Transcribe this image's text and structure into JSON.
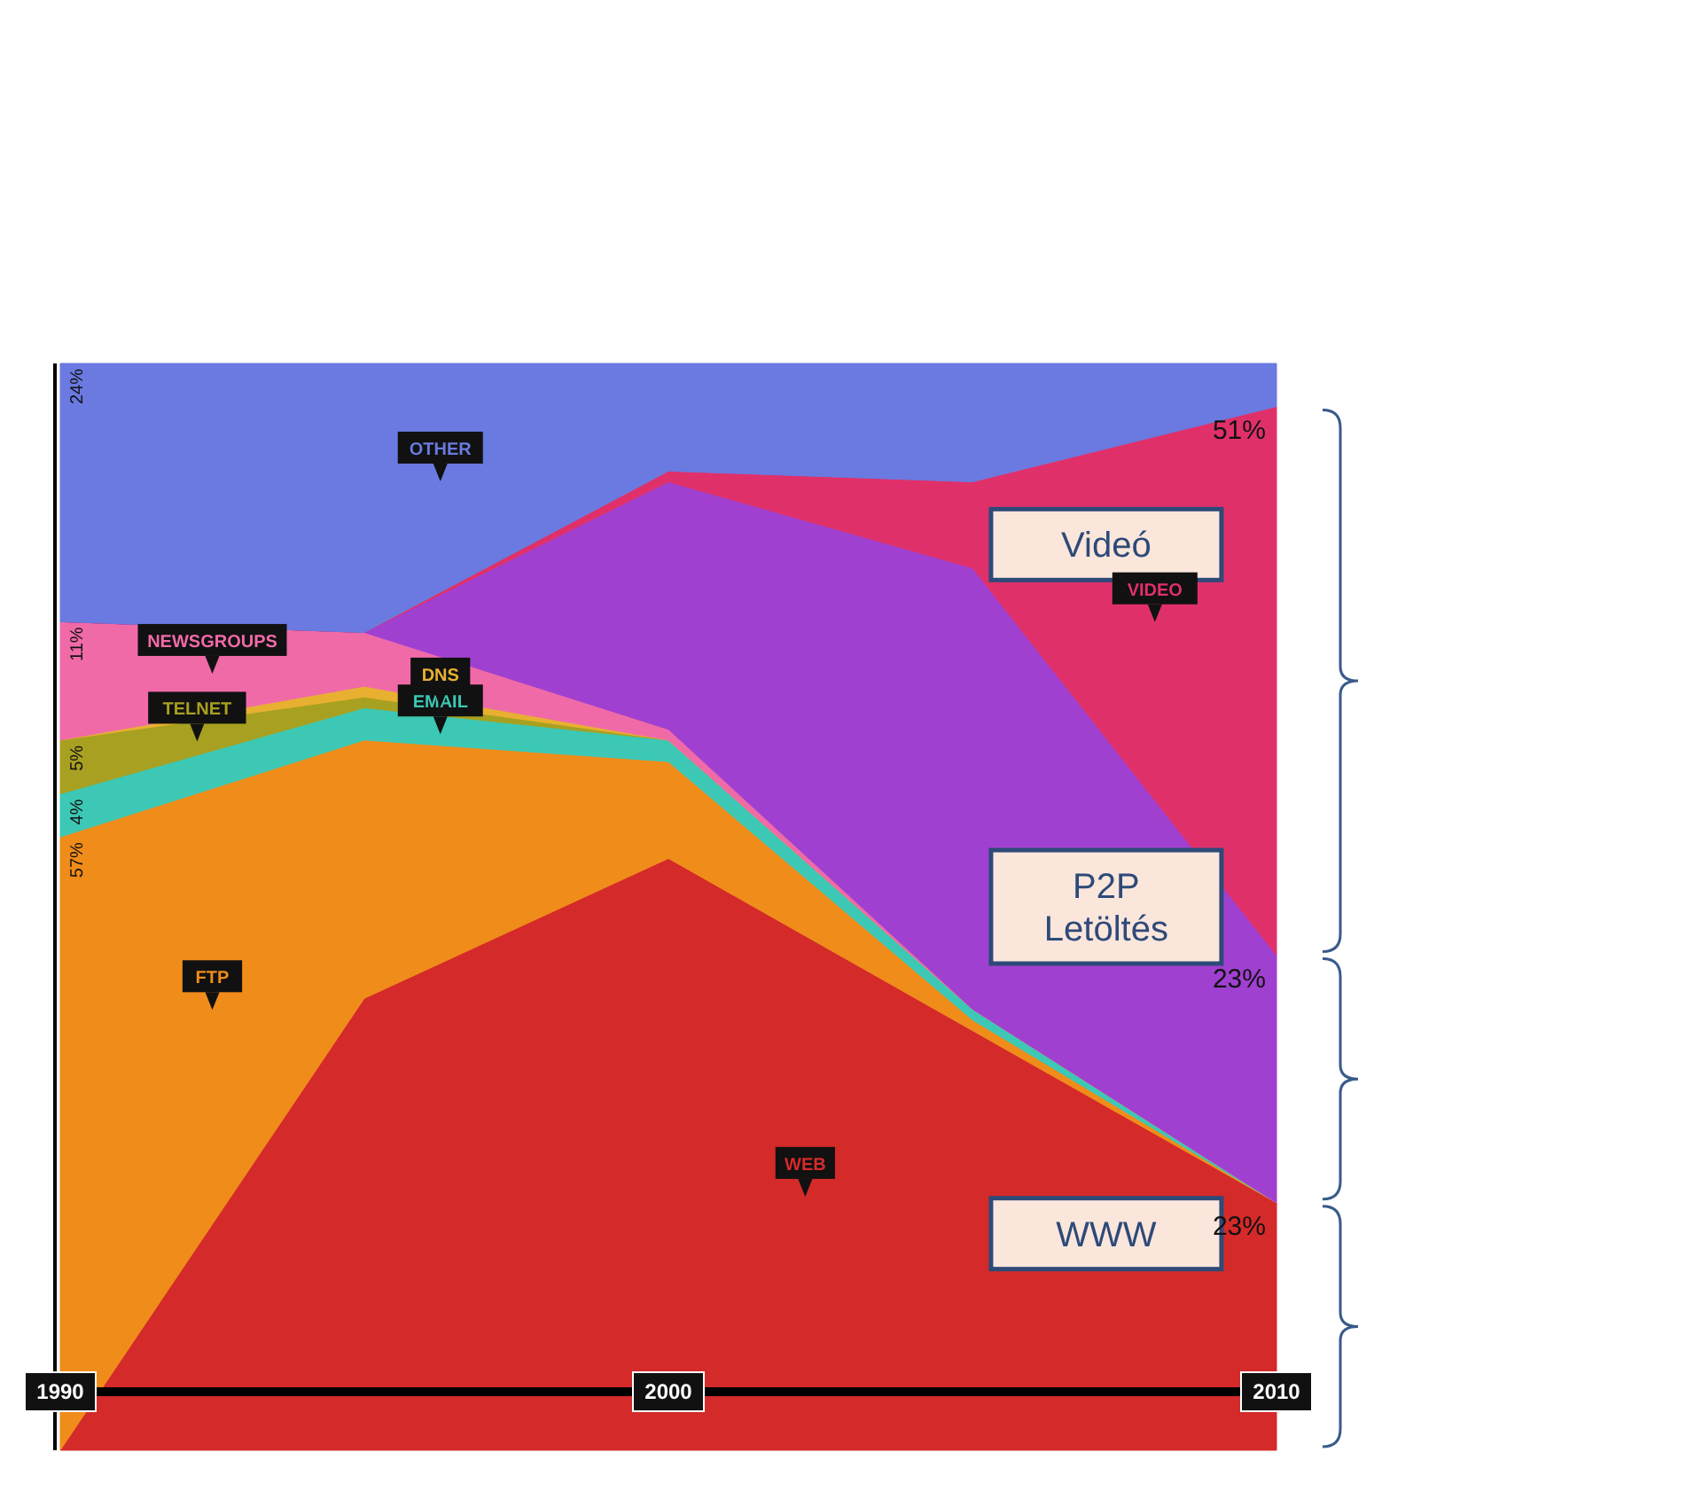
{
  "chart_data": {
    "type": "area",
    "stacked": true,
    "legend": false,
    "grid": false,
    "tick_labels": "x",
    "x": [
      1990,
      1995,
      2000,
      2005,
      2010
    ],
    "xlim": [
      1990,
      2010
    ],
    "xticks": [
      1990,
      2000,
      2010
    ],
    "ylim": [
      0,
      101
    ],
    "series": [
      {
        "name": "WEB",
        "color": "#d42a2a",
        "values": [
          0,
          42,
          55,
          39,
          23
        ],
        "value_labels": [
          null,
          null,
          null,
          null,
          "23%"
        ]
      },
      {
        "name": "FTP",
        "color": "#f08c1a",
        "values": [
          57,
          24,
          9,
          1,
          0
        ],
        "value_labels": [
          "57%",
          null,
          null,
          null,
          null
        ]
      },
      {
        "name": "EMAIL",
        "color": "#3cc8b4",
        "values": [
          4,
          3,
          2,
          1,
          0
        ],
        "value_labels": [
          "4%",
          null,
          null,
          null,
          null
        ]
      },
      {
        "name": "TELNET",
        "color": "#a8a020",
        "values": [
          5,
          1,
          0,
          0,
          0
        ],
        "value_labels": [
          "5%",
          null,
          null,
          null,
          null
        ]
      },
      {
        "name": "DNS",
        "color": "#e8b030",
        "values": [
          0,
          1,
          0,
          0,
          0
        ]
      },
      {
        "name": "NEWSGROUPS",
        "color": "#f06aa8",
        "values": [
          11,
          5,
          1,
          0,
          0
        ],
        "value_labels": [
          "11%",
          null,
          null,
          null,
          null
        ]
      },
      {
        "color": "#a040d0",
        "values": [
          0,
          0,
          23,
          41,
          23
        ],
        "value_labels": [
          null,
          null,
          null,
          null,
          "23%"
        ]
      },
      {
        "name": "VIDEO",
        "color": "#e0306a",
        "values": [
          0,
          0,
          1,
          8,
          51
        ],
        "value_labels": [
          null,
          null,
          null,
          null,
          "51%"
        ]
      },
      {
        "name": "OTHER",
        "color": "#6a7ae0",
        "values": [
          24,
          25,
          10,
          11,
          4
        ],
        "value_labels": [
          "24%",
          null,
          null,
          null,
          null
        ]
      }
    ],
    "annotations": [
      "Videó",
      "P2P\nLetöltés",
      "WWW"
    ]
  }
}
